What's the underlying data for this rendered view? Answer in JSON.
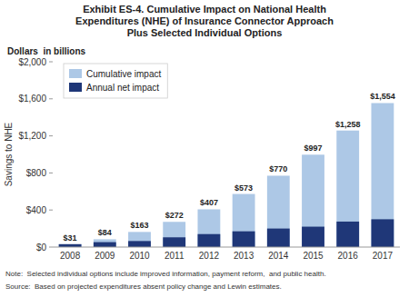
{
  "chart_data": {
    "type": "bar",
    "title": "Exhibit ES-4. Cumulative Impact on National Health\nExpenditures (NHE) of Insurance Connector Approach\nPlus Selected Individual Options",
    "subtitle": "Dollars  in billions",
    "ylabel": "Savings to NHE",
    "annotations": [
      "Note:  Selected individual options include improved information, payment reform,  and public health.",
      "Source:  Based on projected expenditures absent policy change and Lewin estimates."
    ],
    "categories": [
      2008,
      2009,
      2010,
      2011,
      2012,
      2013,
      2014,
      2015,
      2016,
      2017
    ],
    "series": [
      {
        "name": "Cumulative impact",
        "color": "#adc8e6",
        "values": [
          31,
          84,
          163,
          272,
          407,
          573,
          770,
          997,
          1258,
          1554
        ],
        "data_labels": true,
        "value_labels": [
          "$31",
          "$84",
          "$163",
          "$272",
          "$407",
          "$573",
          "$770",
          "$997",
          "$1,258",
          "$1,554"
        ]
      },
      {
        "name": "Annual net impact",
        "color": "#1f3778",
        "values": [
          31,
          53,
          65,
          105,
          140,
          170,
          200,
          220,
          275,
          300
        ]
      }
    ],
    "ylim": [
      0,
      2000
    ],
    "yticks": [
      {
        "value": 0,
        "label": "$0"
      },
      {
        "value": 400,
        "label": "$400"
      },
      {
        "value": 800,
        "label": "$800"
      },
      {
        "value": 1200,
        "label": "$1,200"
      },
      {
        "value": 1600,
        "label": "$1,600"
      },
      {
        "value": 2000,
        "label": "$2,000"
      }
    ],
    "grid": false,
    "legend": "upper left"
  }
}
